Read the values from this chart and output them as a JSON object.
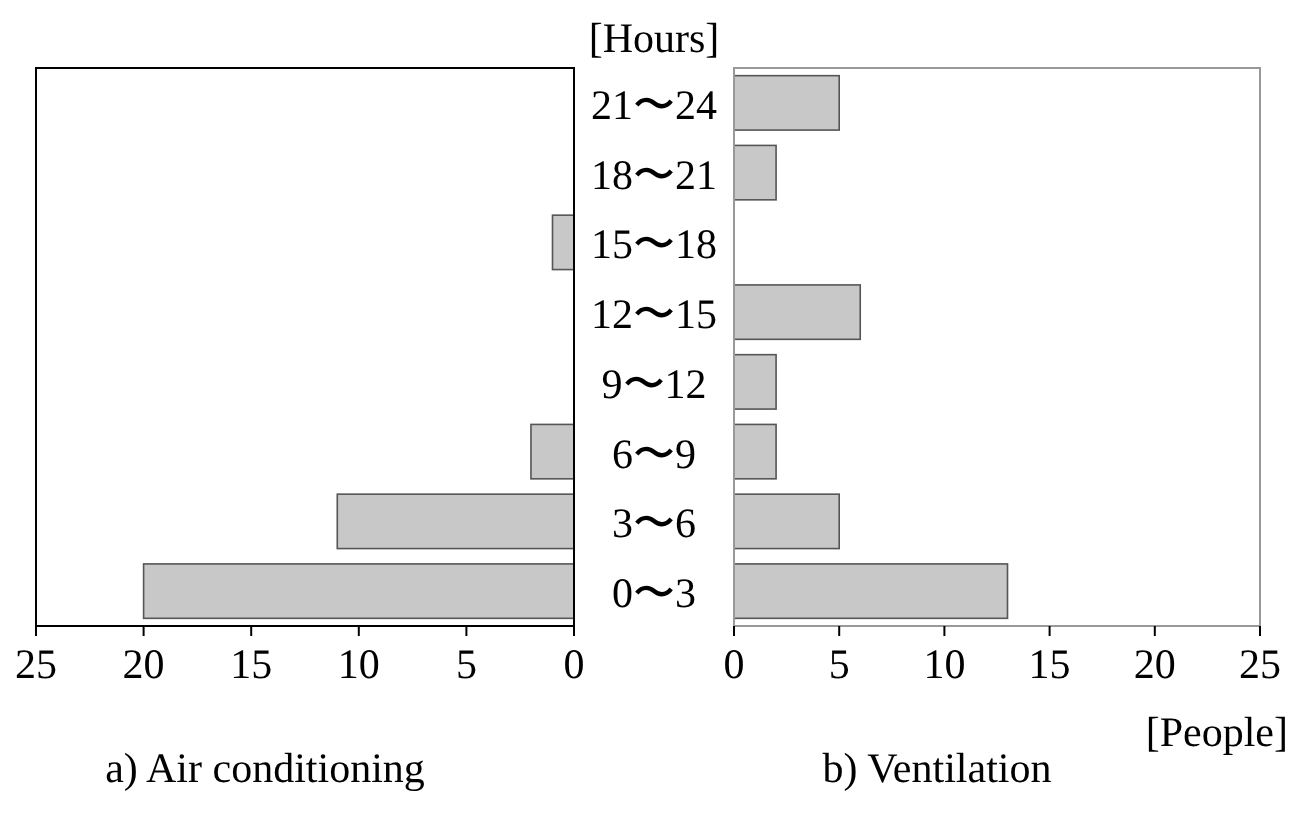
{
  "chart_data": [
    {
      "type": "bar",
      "orientation": "horizontal",
      "title": "a) Air conditioning",
      "categories": [
        "21〜24",
        "18〜21",
        "15〜18",
        "12〜15",
        "9〜12",
        "6〜9",
        "3〜6",
        "0〜3"
      ],
      "values": [
        0,
        0,
        1,
        0,
        0,
        2,
        11,
        20
      ],
      "color": "#c8c8c8",
      "xlim": [
        25,
        0
      ],
      "xticks": [
        25,
        20,
        15,
        10,
        5,
        0
      ],
      "tick_labels": "x",
      "grid": false
    },
    {
      "type": "bar",
      "orientation": "horizontal",
      "title": "b) Ventilation",
      "ylabel": "[Hours]",
      "xlabel": "[People]",
      "categories": [
        "21〜24",
        "18〜21",
        "15〜18",
        "12〜15",
        "9〜12",
        "6〜9",
        "3〜6",
        "0〜3"
      ],
      "values": [
        5,
        2,
        0,
        6,
        2,
        2,
        5,
        13
      ],
      "color": "#c8c8c8",
      "xlim": [
        0,
        25
      ],
      "xticks": [
        0,
        5,
        10,
        15,
        20,
        25
      ],
      "grid": false
    }
  ]
}
